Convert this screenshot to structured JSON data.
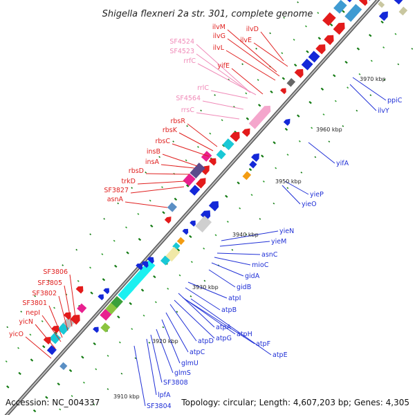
{
  "title": "Shigella flexneri 2a str. 301, complete genome",
  "footer": {
    "accession": "Accession: NC_004337",
    "summary": "Topology: circular; Length: 4,607,203 bp; Genes: 4,305"
  },
  "colors": {
    "red_label": "#e0201f",
    "pink_label": "#f08ab8",
    "blue_label": "#1f2fd6",
    "backbone": "#8c8c8c",
    "tick_dark": "#127a12",
    "tick_light": "#2a9a2a"
  },
  "scale": [
    {
      "text": "3970 kbp"
    },
    {
      "text": "3960 kbp"
    },
    {
      "text": "3950 kbp"
    },
    {
      "text": "3940 kbp"
    },
    {
      "text": "3930 kbp"
    },
    {
      "text": "3920 kbp"
    },
    {
      "text": "3910 kbp"
    }
  ],
  "left_labels": [
    {
      "text": "SF4524",
      "type": "rna"
    },
    {
      "text": "SF4523",
      "type": "rna"
    },
    {
      "text": "rrfC",
      "type": "rna"
    },
    {
      "text": "ilvM",
      "type": "gene"
    },
    {
      "text": "ilvD",
      "type": "gene"
    },
    {
      "text": "ilvG",
      "type": "gene"
    },
    {
      "text": "ilvE",
      "type": "gene"
    },
    {
      "text": "ilvL",
      "type": "gene"
    },
    {
      "text": "yifE",
      "type": "gene"
    },
    {
      "text": "rrlC",
      "type": "rna"
    },
    {
      "text": "SF4564",
      "type": "rna"
    },
    {
      "text": "rrsC",
      "type": "rna"
    },
    {
      "text": "rbsR",
      "type": "gene"
    },
    {
      "text": "rbsK",
      "type": "gene"
    },
    {
      "text": "rbsC",
      "type": "gene"
    },
    {
      "text": "insB",
      "type": "gene"
    },
    {
      "text": "insA",
      "type": "gene"
    },
    {
      "text": "rbsD",
      "type": "gene"
    },
    {
      "text": "trkD",
      "type": "gene"
    },
    {
      "text": "SF3827",
      "type": "gene"
    },
    {
      "text": "asnA",
      "type": "gene"
    },
    {
      "text": "SF3806",
      "type": "gene"
    },
    {
      "text": "SF3805",
      "type": "gene"
    },
    {
      "text": "SF3802",
      "type": "gene"
    },
    {
      "text": "SF3801",
      "type": "gene"
    },
    {
      "text": "nepI",
      "type": "gene"
    },
    {
      "text": "yicN",
      "type": "gene"
    },
    {
      "text": "yicO",
      "type": "gene"
    }
  ],
  "right_labels": [
    {
      "text": "ppiC"
    },
    {
      "text": "ilvY"
    },
    {
      "text": "yifA"
    },
    {
      "text": "yieP"
    },
    {
      "text": "yieO"
    },
    {
      "text": "yieN"
    },
    {
      "text": "yieM"
    },
    {
      "text": "asnC"
    },
    {
      "text": "mioC"
    },
    {
      "text": "gidA"
    },
    {
      "text": "gidB"
    },
    {
      "text": "atpI"
    },
    {
      "text": "atpB"
    },
    {
      "text": "atpA"
    },
    {
      "text": "atpH"
    },
    {
      "text": "atpG"
    },
    {
      "text": "atpF"
    },
    {
      "text": "atpD"
    },
    {
      "text": "atpE"
    },
    {
      "text": "atpC"
    },
    {
      "text": "glmU"
    },
    {
      "text": "glmS"
    },
    {
      "text": "SF3808"
    },
    {
      "text": "lpfA"
    },
    {
      "text": "SF3804"
    }
  ]
}
